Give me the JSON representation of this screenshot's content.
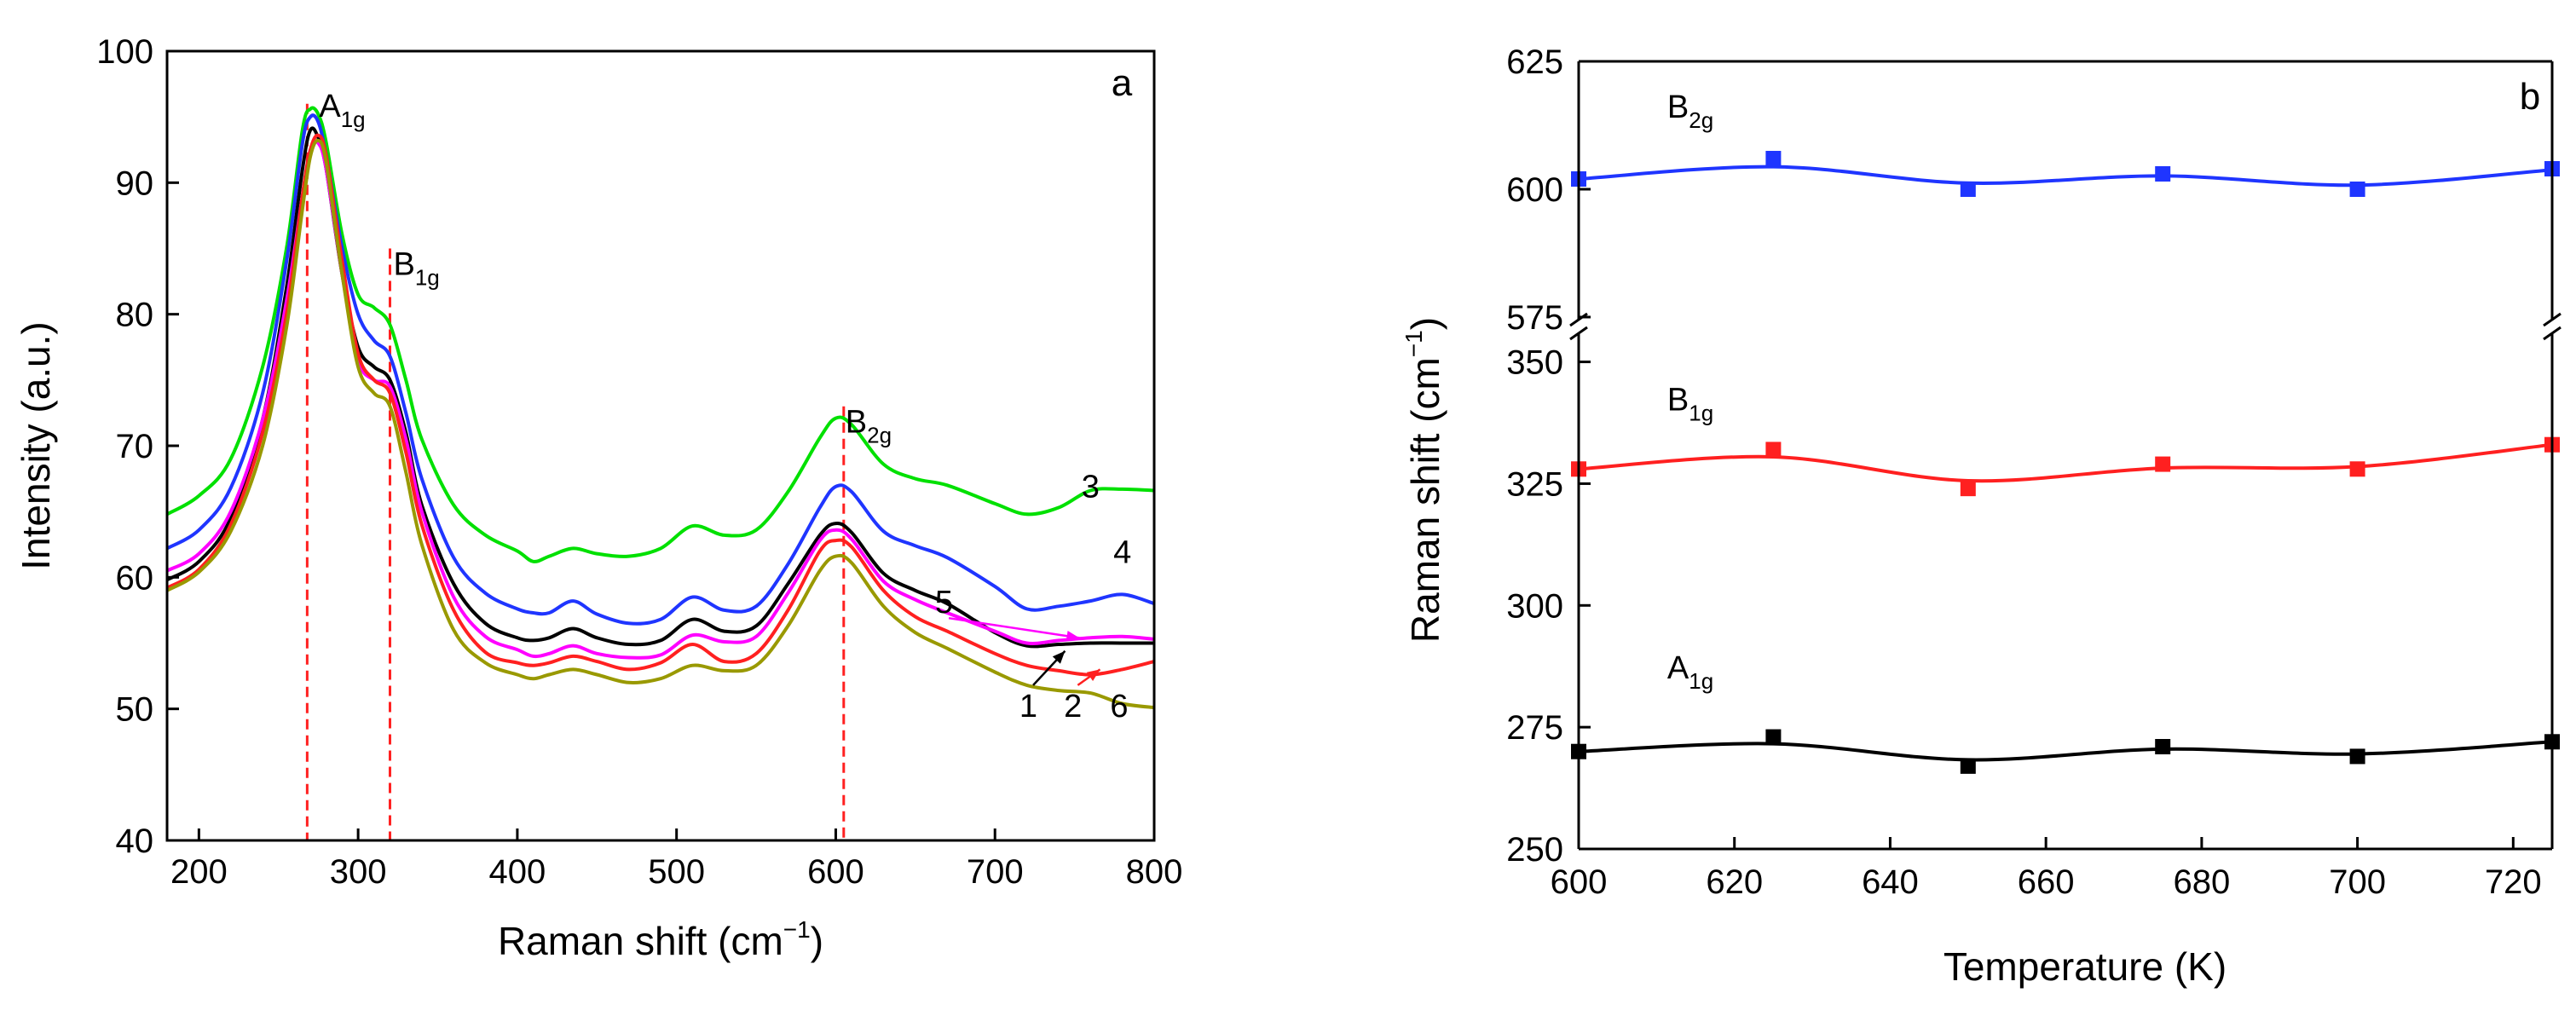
{
  "chart_data": [
    {
      "panel": "a",
      "type": "line",
      "corner_label": "a",
      "xlabel": "Raman shift (cm",
      "xlabel_sup": "−1",
      "xlabel_end": ")",
      "ylabel": "Intensity (a.u.)",
      "xlim": [
        180,
        800
      ],
      "ylim": [
        40,
        100
      ],
      "xticks": [
        200,
        300,
        400,
        500,
        600,
        700,
        800
      ],
      "yticks": [
        40,
        50,
        60,
        70,
        80,
        90,
        100
      ],
      "peaks": [
        {
          "name": "A",
          "sub": "1g",
          "x": 268,
          "top": 96
        },
        {
          "name": "B",
          "sub": "1g",
          "x": 320,
          "top": 85
        },
        {
          "name": "B",
          "sub": "2g",
          "x": 605,
          "top": 73
        }
      ],
      "series": [
        {
          "name": "3",
          "color": "#00e000",
          "x": [
            180,
            200,
            220,
            240,
            255,
            265,
            270,
            275,
            280,
            290,
            300,
            310,
            320,
            330,
            340,
            360,
            380,
            400,
            410,
            420,
            435,
            450,
            470,
            490,
            510,
            530,
            550,
            570,
            590,
            600,
            610,
            630,
            650,
            670,
            700,
            720,
            740,
            760,
            780,
            800
          ],
          "y": [
            64.8,
            66.2,
            69,
            76,
            85,
            94,
            95.6,
            95.2,
            93,
            86,
            81.5,
            80.5,
            79.2,
            75,
            70.5,
            65.5,
            63.2,
            62,
            61.2,
            61.6,
            62.2,
            61.8,
            61.6,
            62.2,
            63.9,
            63.2,
            63.6,
            66.5,
            70.6,
            72.1,
            71.6,
            68.6,
            67.5,
            67,
            65.6,
            64.8,
            65.3,
            66.6,
            66.7,
            66.6
          ]
        },
        {
          "name": "4",
          "color": "#1f35ff",
          "x": [
            180,
            200,
            220,
            240,
            255,
            265,
            270,
            275,
            280,
            290,
            300,
            310,
            320,
            330,
            340,
            360,
            380,
            400,
            410,
            420,
            435,
            450,
            470,
            490,
            510,
            530,
            550,
            570,
            590,
            600,
            610,
            630,
            650,
            670,
            700,
            720,
            740,
            760,
            780,
            800
          ],
          "y": [
            62.2,
            63.6,
            66.8,
            74,
            84,
            93,
            95,
            94.6,
            92,
            85,
            80,
            78,
            76.8,
            72.5,
            67.5,
            61.5,
            58.8,
            57.6,
            57.3,
            57.3,
            58.2,
            57.2,
            56.5,
            56.8,
            58.5,
            57.5,
            57.8,
            61,
            65.3,
            66.9,
            66.5,
            63.5,
            62.4,
            61.5,
            59.3,
            57.6,
            57.8,
            58.2,
            58.7,
            58
          ]
        },
        {
          "name": "1",
          "color": "#000000",
          "x": [
            180,
            200,
            220,
            240,
            255,
            265,
            270,
            275,
            280,
            290,
            300,
            310,
            320,
            330,
            340,
            360,
            380,
            400,
            410,
            420,
            435,
            450,
            470,
            490,
            510,
            530,
            550,
            570,
            590,
            600,
            610,
            630,
            650,
            670,
            700,
            720,
            740,
            760,
            780,
            800
          ],
          "y": [
            59.8,
            61.2,
            64.5,
            72,
            82,
            91,
            94,
            93.4,
            91,
            83,
            77.5,
            76,
            75,
            71,
            65.5,
            59.5,
            56.5,
            55.4,
            55.2,
            55.4,
            56.1,
            55.4,
            54.9,
            55.2,
            56.8,
            55.9,
            56.3,
            59.5,
            63.2,
            64.1,
            63.4,
            60.3,
            59,
            58,
            55.8,
            54.8,
            54.9,
            55,
            55,
            55
          ]
        },
        {
          "name": "5",
          "color": "#ff00ff",
          "x": [
            180,
            200,
            220,
            240,
            255,
            265,
            270,
            275,
            280,
            290,
            300,
            310,
            320,
            330,
            340,
            360,
            380,
            400,
            410,
            420,
            435,
            450,
            470,
            490,
            510,
            530,
            550,
            570,
            590,
            600,
            610,
            630,
            650,
            670,
            700,
            720,
            740,
            760,
            780,
            800
          ],
          "y": [
            60.5,
            61.8,
            65,
            72,
            81,
            89,
            92.5,
            93,
            91,
            83,
            76.5,
            75,
            74.5,
            70.5,
            65,
            58.5,
            55.5,
            54.5,
            54,
            54.2,
            54.8,
            54.2,
            53.9,
            54.1,
            55.6,
            55.1,
            55.5,
            58.8,
            62.8,
            63.6,
            62.9,
            59.7,
            58.3,
            57.3,
            55.9,
            55,
            55.2,
            55.4,
            55.5,
            55.3
          ]
        },
        {
          "name": "2",
          "color": "#ff2020",
          "x": [
            180,
            200,
            220,
            240,
            255,
            265,
            270,
            275,
            280,
            290,
            300,
            310,
            320,
            330,
            340,
            360,
            380,
            400,
            410,
            420,
            435,
            450,
            470,
            490,
            510,
            530,
            550,
            570,
            590,
            600,
            610,
            630,
            650,
            670,
            700,
            720,
            740,
            760,
            780,
            800
          ],
          "y": [
            59.2,
            60.6,
            64,
            71,
            80,
            89,
            92.5,
            93.6,
            92,
            84,
            77,
            75,
            74,
            69.5,
            64,
            57.5,
            54.3,
            53.5,
            53.3,
            53.5,
            54,
            53.6,
            53,
            53.5,
            54.9,
            53.6,
            54.2,
            57.5,
            62,
            62.8,
            62.3,
            59,
            57,
            55.9,
            54.2,
            53.3,
            52.9,
            52.6,
            53,
            53.6
          ]
        },
        {
          "name": "6",
          "color": "#999900",
          "x": [
            180,
            200,
            220,
            240,
            255,
            265,
            270,
            275,
            280,
            290,
            300,
            310,
            320,
            330,
            340,
            360,
            380,
            400,
            410,
            420,
            435,
            450,
            470,
            490,
            510,
            530,
            550,
            570,
            590,
            600,
            610,
            630,
            650,
            670,
            700,
            720,
            740,
            760,
            780,
            800
          ],
          "y": [
            59,
            60.4,
            63.5,
            70,
            79,
            88,
            92,
            93.2,
            91.5,
            83,
            76,
            74,
            73,
            68,
            62.5,
            56,
            53.5,
            52.6,
            52.3,
            52.6,
            53,
            52.6,
            52,
            52.3,
            53.3,
            52.9,
            53.3,
            56.3,
            60.5,
            61.6,
            61.1,
            57.8,
            55.8,
            54.6,
            52.8,
            51.8,
            51.4,
            51.2,
            50.4,
            50.1
          ]
        }
      ],
      "labels": [
        {
          "text": "3",
          "x": 760,
          "y": 67
        },
        {
          "text": "4",
          "x": 780,
          "y": 62
        },
        {
          "text": "5",
          "x": 668,
          "y": 58.2
        },
        {
          "text": "1",
          "x": 721,
          "y": 50.3
        },
        {
          "text": "2",
          "x": 749,
          "y": 50.3
        },
        {
          "text": "6",
          "x": 778,
          "y": 50.3
        }
      ]
    },
    {
      "panel": "b",
      "type": "line",
      "corner_label": "b",
      "xlabel": "Temperature (K)",
      "ylabel": "Raman shift (cm",
      "ylabel_sup": "−1",
      "ylabel_end": ")",
      "xlim": [
        600,
        725
      ],
      "xticks": [
        600,
        620,
        640,
        660,
        680,
        700,
        720
      ],
      "ylim_lower": [
        250,
        355
      ],
      "ylim_upper": [
        575,
        625
      ],
      "yticks": [
        250,
        275,
        300,
        325,
        350,
        575,
        600,
        625
      ],
      "axis_break": true,
      "series": [
        {
          "name": "B",
          "sub": "2g",
          "color": "#1f35ff",
          "x": [
            600,
            625,
            650,
            675,
            700,
            725
          ],
          "y": [
            602,
            606,
            600,
            603,
            600,
            604
          ],
          "fit": [
            602,
            604.4,
            601.2,
            602.6,
            600.8,
            603.8
          ]
        },
        {
          "name": "B",
          "sub": "1g",
          "color": "#ff2020",
          "x": [
            600,
            625,
            650,
            675,
            700,
            725
          ],
          "y": [
            328,
            332,
            324,
            329,
            328,
            333
          ],
          "fit": [
            328,
            330.5,
            325.6,
            328.2,
            328.5,
            333
          ]
        },
        {
          "name": "A",
          "sub": "1g",
          "color": "#000000",
          "x": [
            600,
            625,
            650,
            675,
            700,
            725
          ],
          "y": [
            270,
            273,
            267,
            271,
            269,
            272
          ],
          "fit": [
            270,
            271.6,
            268.3,
            270.5,
            269.5,
            272
          ]
        }
      ]
    }
  ]
}
